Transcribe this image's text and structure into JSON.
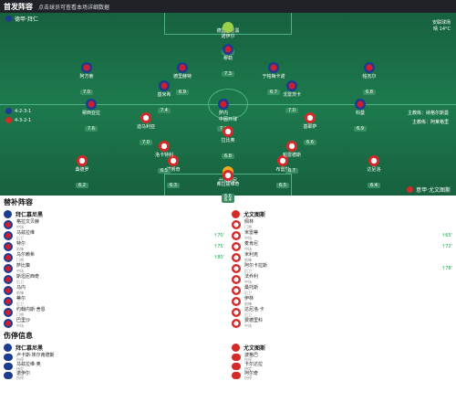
{
  "header": {
    "title": "首发阵容",
    "hint": "点击球员可查看本场详细数据"
  },
  "pitch": {
    "home_team": "德甲·拜仁",
    "away_team": "意甲·尤文图斯",
    "weather_lines": [
      "安联球场",
      "晴 14°C"
    ],
    "venue": "德国慕尼黑",
    "home_formation": "4-2-3-1",
    "away_formation": "4-3-2-1",
    "home_coach": "主教练：纳格尔斯曼",
    "away_coach": "主教练：阿莱格里",
    "centre": "中圈开球"
  },
  "home_players": [
    {
      "name": "诺伊尔",
      "rating": "7.1",
      "gk": true
    },
    {
      "name": "帕瓦尔",
      "rating": "6.8"
    },
    {
      "name": "于帕梅卡诺",
      "rating": "6.7"
    },
    {
      "name": "德里赫特",
      "rating": "6.9"
    },
    {
      "name": "阿方索",
      "rating": "7.0"
    },
    {
      "name": "基米希",
      "rating": "7.4"
    },
    {
      "name": "戈雷茨卡",
      "rating": "7.0"
    },
    {
      "name": "萨内",
      "rating": "7.2"
    },
    {
      "name": "穆西亚拉",
      "rating": "7.6"
    },
    {
      "name": "科曼",
      "rating": "6.9"
    },
    {
      "name": "穆勒",
      "rating": "7.3"
    }
  ],
  "away_players": [
    {
      "name": "什琴斯尼",
      "rating": "6.6",
      "gk": true
    },
    {
      "name": "达尼洛",
      "rating": "6.4"
    },
    {
      "name": "布雷默",
      "rating": "6.5"
    },
    {
      "name": "博努奇",
      "rating": "6.3"
    },
    {
      "name": "桑德罗",
      "rating": "6.2"
    },
    {
      "name": "洛卡特利",
      "rating": "6.5"
    },
    {
      "name": "帕雷德斯",
      "rating": "6.7"
    },
    {
      "name": "拉比奥",
      "rating": "6.8"
    },
    {
      "name": "迪马利亚",
      "rating": "7.0"
    },
    {
      "name": "基耶萨",
      "rating": "6.6"
    },
    {
      "name": "弗拉霍维奇",
      "rating": "6.4"
    }
  ],
  "subs_title": "替补阵容",
  "subs": {
    "home_team": "拜仁慕尼黑",
    "away_team": "尤文图斯",
    "home": [
      {
        "name": "格拉文贝赫",
        "pos": "中场"
      },
      {
        "name": "马兹拉维",
        "pos": "后卫",
        "sub": "↑70'"
      },
      {
        "name": "特尔",
        "pos": "前锋",
        "sub": "↑75'"
      },
      {
        "name": "乌尔赖希",
        "pos": "门将",
        "sub": "↑80'"
      },
      {
        "name": "萨比策",
        "pos": "中场"
      },
      {
        "name": "斯坦尼西奇",
        "pos": "后卫"
      },
      {
        "name": "马内",
        "pos": "前锋"
      },
      {
        "name": "蒂尔",
        "pos": "后卫"
      },
      {
        "name": "约翰内斯·舍恩",
        "pos": "门将"
      },
      {
        "name": "巴里沙",
        "pos": "中场"
      }
    ],
    "away": [
      {
        "name": "佩林",
        "pos": "门将"
      },
      {
        "name": "米雷蒂",
        "pos": "中场",
        "sub": "↑65'"
      },
      {
        "name": "麦肯尼",
        "pos": "中场",
        "sub": "↑72'"
      },
      {
        "name": "米利克",
        "pos": "前锋"
      },
      {
        "name": "阿尔卡拉斯",
        "pos": "后卫",
        "sub": "↑78'"
      },
      {
        "name": "法乔利",
        "pos": "中场"
      },
      {
        "name": "桑托斯",
        "pos": "后卫"
      },
      {
        "name": "伊林",
        "pos": "前锋"
      },
      {
        "name": "达尼洛·卡",
        "pos": "后卫"
      },
      {
        "name": "费德里科",
        "pos": "中场"
      }
    ]
  },
  "injuries_title": "伤停信息",
  "injuries": {
    "home_team": "拜仁慕尼黑",
    "away_team": "尤文图斯",
    "home": [
      {
        "name": "卢卡斯·埃尔南德斯",
        "status": "伤停"
      },
      {
        "name": "马兹拉维·奥",
        "status": "待定"
      },
      {
        "name": "诺伊尔",
        "status": "伤停"
      }
    ],
    "away": [
      {
        "name": "波格巴",
        "status": "伤停"
      },
      {
        "name": "卡尔达拉",
        "status": "待定"
      },
      {
        "name": "阿尔奇",
        "status": "伤停"
      }
    ]
  }
}
